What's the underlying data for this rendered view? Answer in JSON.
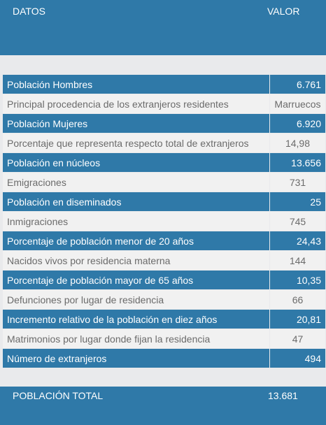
{
  "header": {
    "col_datos": "DATOS",
    "col_valor": "VALOR"
  },
  "rows": [
    {
      "label": "Población Hombres",
      "value": "6.761",
      "style": "dark"
    },
    {
      "label": "Principal procedencia de los extranjeros residentes",
      "value": "Marruecos",
      "style": "light"
    },
    {
      "label": "Población Mujeres",
      "value": "6.920",
      "style": "dark"
    },
    {
      "label": "Porcentaje que representa respecto total de extranjeros",
      "value": "14,98",
      "style": "light"
    },
    {
      "label": "Población en núcleos",
      "value": "13.656",
      "style": "dark"
    },
    {
      "label": "Emigraciones",
      "value": "731",
      "style": "light"
    },
    {
      "label": "Población en diseminados",
      "value": "25",
      "style": "dark"
    },
    {
      "label": "Inmigraciones",
      "value": "745",
      "style": "light"
    },
    {
      "label": "Porcentaje de población menor de 20 años",
      "value": "24,43",
      "style": "dark"
    },
    {
      "label": "Nacidos vivos por residencia materna",
      "value": "144",
      "style": "light"
    },
    {
      "label": "Porcentaje de población mayor de 65 años",
      "value": "10,35",
      "style": "dark"
    },
    {
      "label": "Defunciones por lugar de residencia",
      "value": "66",
      "style": "light"
    },
    {
      "label": "Incremento relativo de la población en diez años",
      "value": "20,81",
      "style": "dark"
    },
    {
      "label": "Matrimonios por lugar donde fijan la residencia",
      "value": "47",
      "style": "light"
    },
    {
      "label": "Número de extranjeros",
      "value": "494",
      "style": "dark"
    }
  ],
  "total": {
    "label": "POBLACIÓN TOTAL",
    "value": "13.681"
  },
  "colors": {
    "accent": "#2f79a8",
    "light_row": "#f1f1f1",
    "background": "#e9eaec"
  }
}
